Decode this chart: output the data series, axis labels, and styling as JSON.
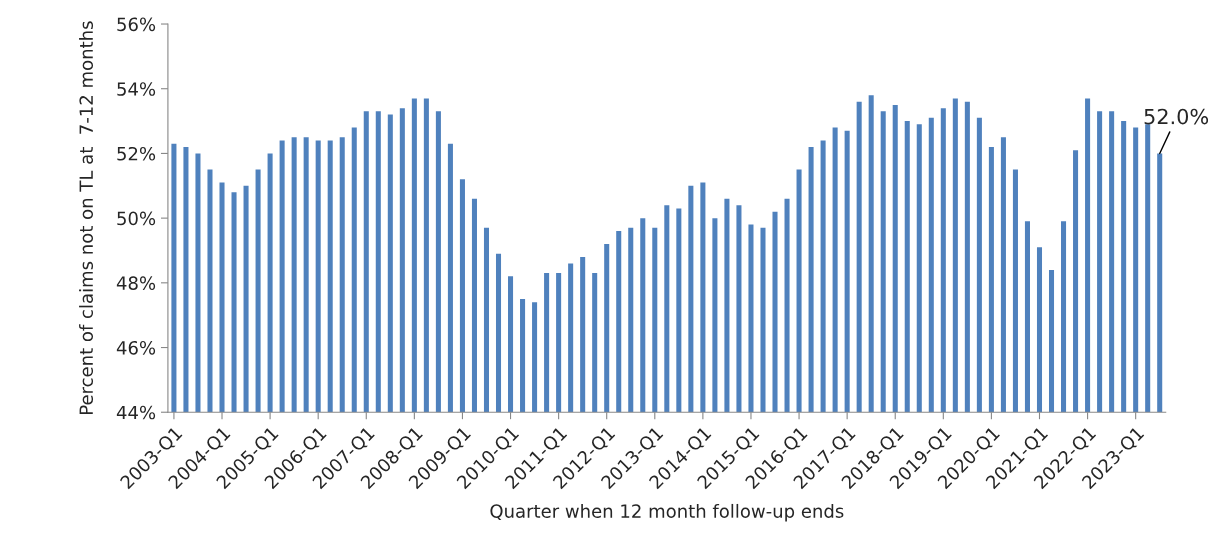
{
  "chart_data": {
    "type": "bar",
    "xlabel": "Quarter when 12 month follow-up ends",
    "ylabel": "Percent of claims not on TL at  7-12 months",
    "categories": [
      "2003-Q1",
      null,
      null,
      null,
      "2004-Q1",
      null,
      null,
      null,
      "2005-Q1",
      null,
      null,
      null,
      "2006-Q1",
      null,
      null,
      null,
      "2007-Q1",
      null,
      null,
      null,
      "2008-Q1",
      null,
      null,
      null,
      "2009-Q1",
      null,
      null,
      null,
      "2010-Q1",
      null,
      null,
      null,
      "2011-Q1",
      null,
      null,
      null,
      "2012-Q1",
      null,
      null,
      null,
      "2013-Q1",
      null,
      null,
      null,
      "2014-Q1",
      null,
      null,
      null,
      "2015-Q1",
      null,
      null,
      null,
      "2016-Q1",
      null,
      null,
      null,
      "2017-Q1",
      null,
      null,
      null,
      "2018-Q1",
      null,
      null,
      null,
      "2019-Q1",
      null,
      null,
      null,
      "2020-Q1",
      null,
      null,
      null,
      "2021-Q1",
      null,
      null,
      null,
      "2022-Q1",
      null,
      null,
      null,
      "2023-Q1",
      null,
      null
    ],
    "values": [
      52.3,
      52.2,
      52.0,
      51.5,
      51.1,
      50.8,
      51.0,
      51.5,
      52.0,
      52.4,
      52.5,
      52.5,
      52.4,
      52.4,
      52.5,
      52.8,
      53.3,
      53.3,
      53.2,
      53.4,
      53.7,
      53.7,
      53.3,
      52.3,
      51.2,
      50.6,
      49.7,
      48.9,
      48.2,
      47.5,
      47.4,
      48.3,
      48.3,
      48.6,
      48.8,
      48.3,
      49.2,
      49.6,
      49.7,
      50.0,
      49.7,
      50.4,
      50.3,
      51.0,
      51.1,
      50.0,
      50.6,
      50.4,
      49.8,
      49.7,
      50.2,
      50.6,
      51.5,
      52.2,
      52.4,
      52.8,
      52.7,
      53.6,
      53.8,
      53.3,
      53.5,
      53.0,
      52.9,
      53.1,
      53.4,
      53.7,
      53.6,
      53.1,
      52.2,
      52.5,
      51.5,
      49.9,
      49.1,
      48.4,
      49.9,
      52.1,
      53.7,
      53.3,
      53.3,
      53.0,
      52.8,
      52.9,
      52.0
    ],
    "value_labels": [
      null,
      null,
      null,
      null,
      null,
      null,
      null,
      null,
      null,
      null,
      null,
      null,
      null,
      null,
      null,
      null,
      null,
      null,
      null,
      null,
      null,
      null,
      null,
      null,
      null,
      null,
      null,
      null,
      null,
      null,
      null,
      null,
      null,
      null,
      null,
      null,
      null,
      null,
      null,
      null,
      null,
      null,
      null,
      null,
      null,
      null,
      null,
      null,
      null,
      null,
      null,
      null,
      null,
      null,
      null,
      null,
      null,
      null,
      null,
      null,
      null,
      null,
      null,
      null,
      null,
      null,
      null,
      null,
      null,
      null,
      null,
      null,
      null,
      null,
      null,
      null,
      null,
      null,
      null,
      null,
      null,
      null,
      "52.0%"
    ],
    "color": "#4f81bd",
    "ylim": [
      44,
      56
    ],
    "yticks": [
      {
        "value": 44,
        "label": "44%"
      },
      {
        "value": 46,
        "label": "46%"
      },
      {
        "value": 48,
        "label": "48%"
      },
      {
        "value": 50,
        "label": "50%"
      },
      {
        "value": 52,
        "label": "52%"
      },
      {
        "value": 54,
        "label": "54%"
      },
      {
        "value": 56,
        "label": "56%"
      }
    ],
    "grid": false,
    "legend": false
  }
}
